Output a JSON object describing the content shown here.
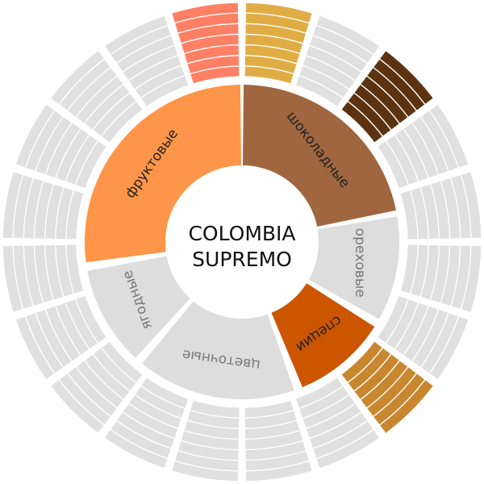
{
  "title": {
    "line1": "COLOMBIA",
    "line2": "SUPREMO"
  },
  "chart_data": {
    "type": "sunburst",
    "inner": [
      {
        "label": "шоколадные",
        "start": 0,
        "end": 79,
        "color": "#a0663f",
        "active": true
      },
      {
        "label": "ореховые",
        "start": 80,
        "end": 120,
        "color": "#dddddd",
        "active": false
      },
      {
        "label": "специи",
        "start": 122,
        "end": 158,
        "color": "#cc5500",
        "active": true
      },
      {
        "label": "цветочные",
        "start": 160,
        "end": 220,
        "color": "#dddddd",
        "active": false
      },
      {
        "label": "ягодные",
        "start": 222,
        "end": 260,
        "color": "#dddddd",
        "active": false
      },
      {
        "label": "фруктовые",
        "start": 262,
        "end": 360,
        "color": "#ff9548",
        "active": true
      }
    ],
    "outer_segments": 20,
    "outer_bands": 7,
    "outer_default_color": "#e0e0e0",
    "outer_highlights": [
      {
        "index": 0,
        "color": "#e0ad45"
      },
      {
        "index": 2,
        "color": "#5c3310"
      },
      {
        "index": 7,
        "color": "#c8872f"
      },
      {
        "index": 19,
        "color": "#ff8065"
      }
    ]
  }
}
